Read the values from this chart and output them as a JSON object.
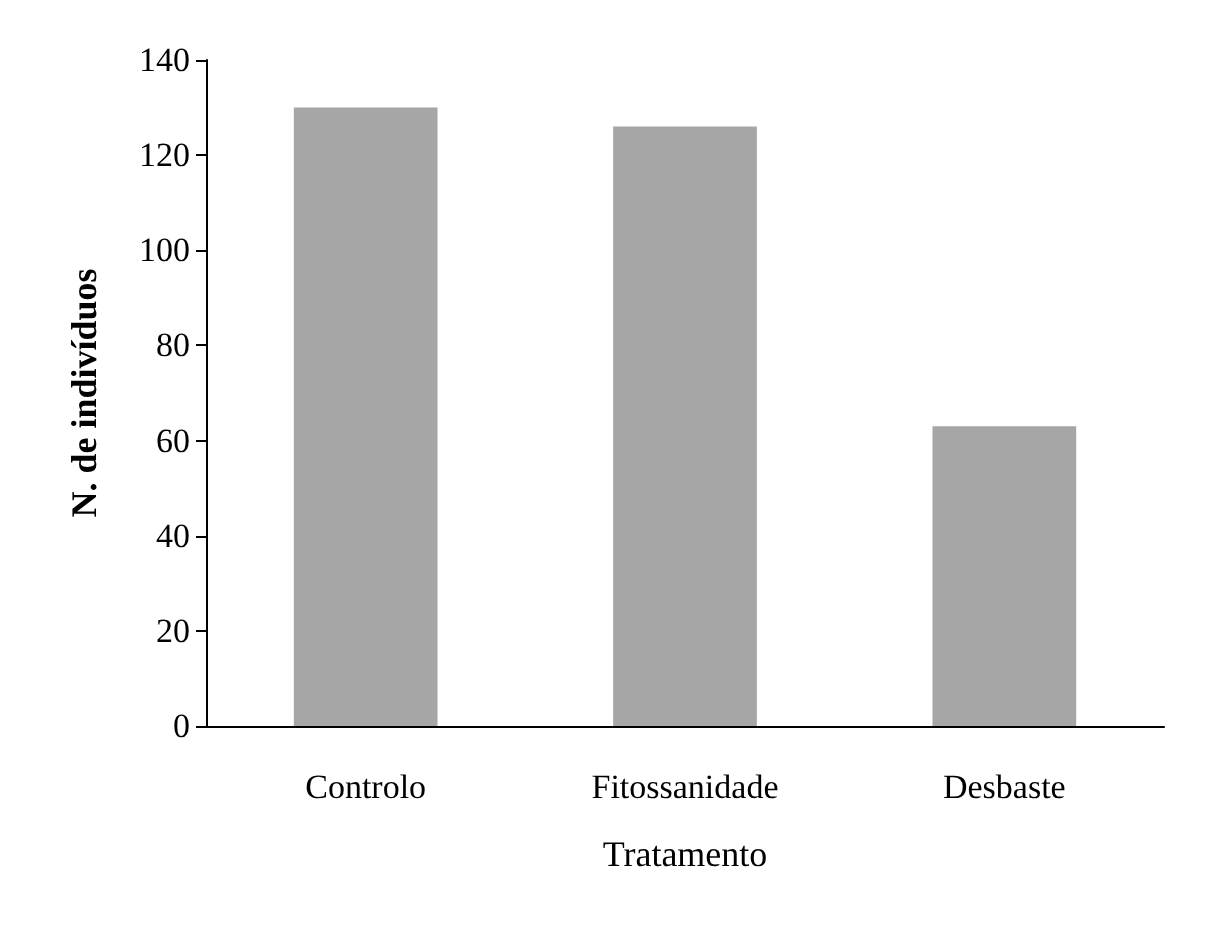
{
  "chart_data": {
    "type": "bar",
    "xlabel": "Tratamento",
    "ylabel": "N. de indivíduos",
    "categories": [
      "Controlo",
      "Fitossanidade",
      "Desbaste"
    ],
    "values": [
      130,
      126,
      63
    ],
    "color": "#a6a6a6",
    "ylim": [
      0,
      140
    ],
    "yticks": [
      0,
      20,
      40,
      60,
      80,
      100,
      120,
      140
    ],
    "grid": false
  }
}
